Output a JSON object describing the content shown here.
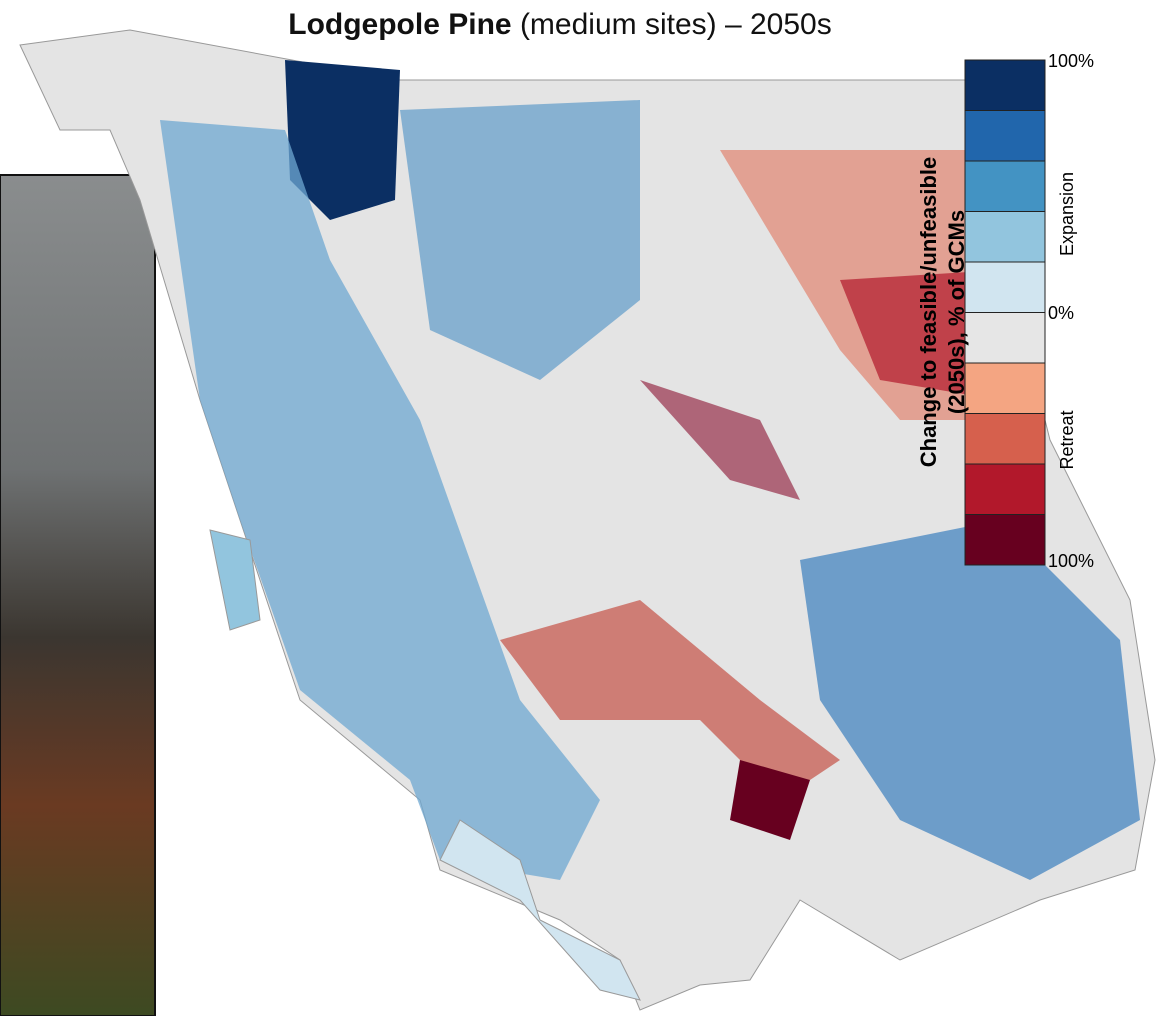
{
  "title": {
    "bold": "Lodgepole Pine",
    "rest": " (medium sites) – 2050s"
  },
  "legend": {
    "title_lines": [
      "Change to feasible/unfeasible",
      "(2050s), % of GCMs"
    ],
    "top_label": "100%",
    "upper_label": "Expansion",
    "middle_label": "0%",
    "lower_label": "Retreat",
    "bottom_label": "100%",
    "colors": [
      "#0b2f63",
      "#2166ac",
      "#4393c3",
      "#92c5de",
      "#d1e5f0",
      "#e6e6e6",
      "#f4a582",
      "#d6604d",
      "#b2182b",
      "#67001f"
    ]
  }
}
